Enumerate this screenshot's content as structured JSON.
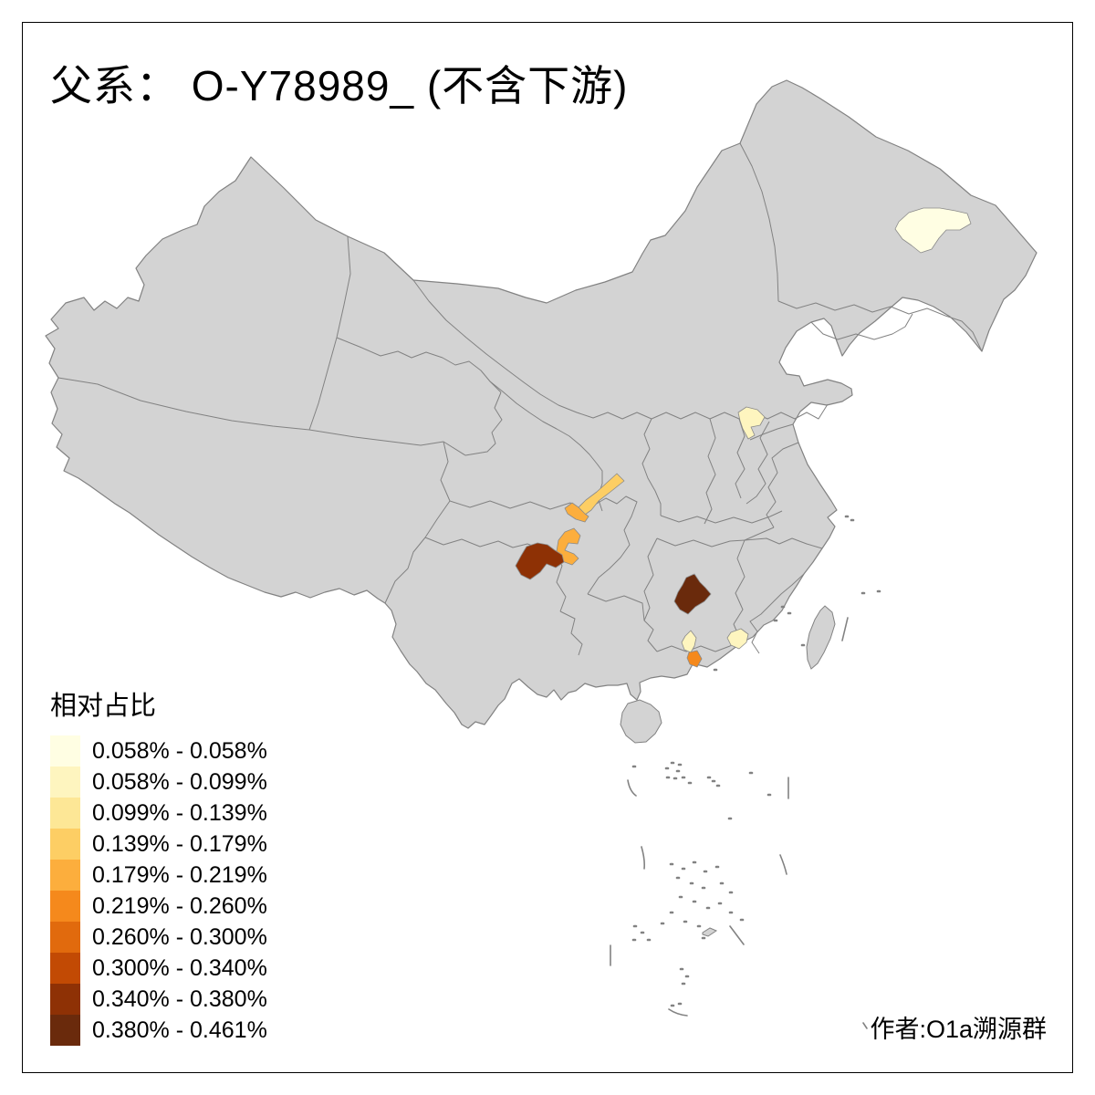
{
  "title": "父系： O-Y78989_ (不含下游)",
  "attribution": "作者:O1a溯源群",
  "legend": {
    "title": "相对占比",
    "items": [
      {
        "color": "#FFFEE3",
        "label": "0.058% - 0.058%"
      },
      {
        "color": "#FEF5BF",
        "label": "0.058% - 0.099%"
      },
      {
        "color": "#FDE796",
        "label": "0.099% - 0.139%"
      },
      {
        "color": "#FDCE64",
        "label": "0.139% - 0.179%"
      },
      {
        "color": "#FCAE3D",
        "label": "0.179% - 0.219%"
      },
      {
        "color": "#F5891C",
        "label": "0.219% - 0.260%"
      },
      {
        "color": "#E16A0D",
        "label": "0.260% - 0.300%"
      },
      {
        "color": "#C24A04",
        "label": "0.300% - 0.340%"
      },
      {
        "color": "#8E3105",
        "label": "0.340% - 0.380%"
      },
      {
        "color": "#6A2A0C",
        "label": "0.380% - 0.461%"
      }
    ]
  },
  "map": {
    "background": "#FFFFFF",
    "base_fill": "#D3D3D3",
    "border_color": "#828282",
    "regions": [
      {
        "id": "heilongjiang-prefecture",
        "range": "0.058% - 0.058%",
        "color": "#FFFEE3"
      },
      {
        "id": "beijing",
        "range": "0.058% - 0.099%",
        "color": "#FEF5BF"
      },
      {
        "id": "shaanxi-hanzhong",
        "range": "0.139% - 0.179%",
        "color": "#FDCE64"
      },
      {
        "id": "sichuan-guangyuan",
        "range": "0.179% - 0.219%",
        "color": "#FCAE3D"
      },
      {
        "id": "chongqing-west",
        "range": "0.179% - 0.219%",
        "color": "#FCAE3D"
      },
      {
        "id": "sichuan-south",
        "range": "0.340% - 0.380%",
        "color": "#8E3105"
      },
      {
        "id": "hunan-southwest",
        "range": "0.380% - 0.461%",
        "color": "#6A2A0C"
      },
      {
        "id": "guangdong-qingyuan",
        "range": "0.058% - 0.099%",
        "color": "#FEF5BF"
      },
      {
        "id": "guangdong-guangzhou",
        "range": "0.219% - 0.260%",
        "color": "#F5891C"
      },
      {
        "id": "guangdong-east",
        "range": "0.058% - 0.099%",
        "color": "#FEF5BF"
      }
    ]
  }
}
